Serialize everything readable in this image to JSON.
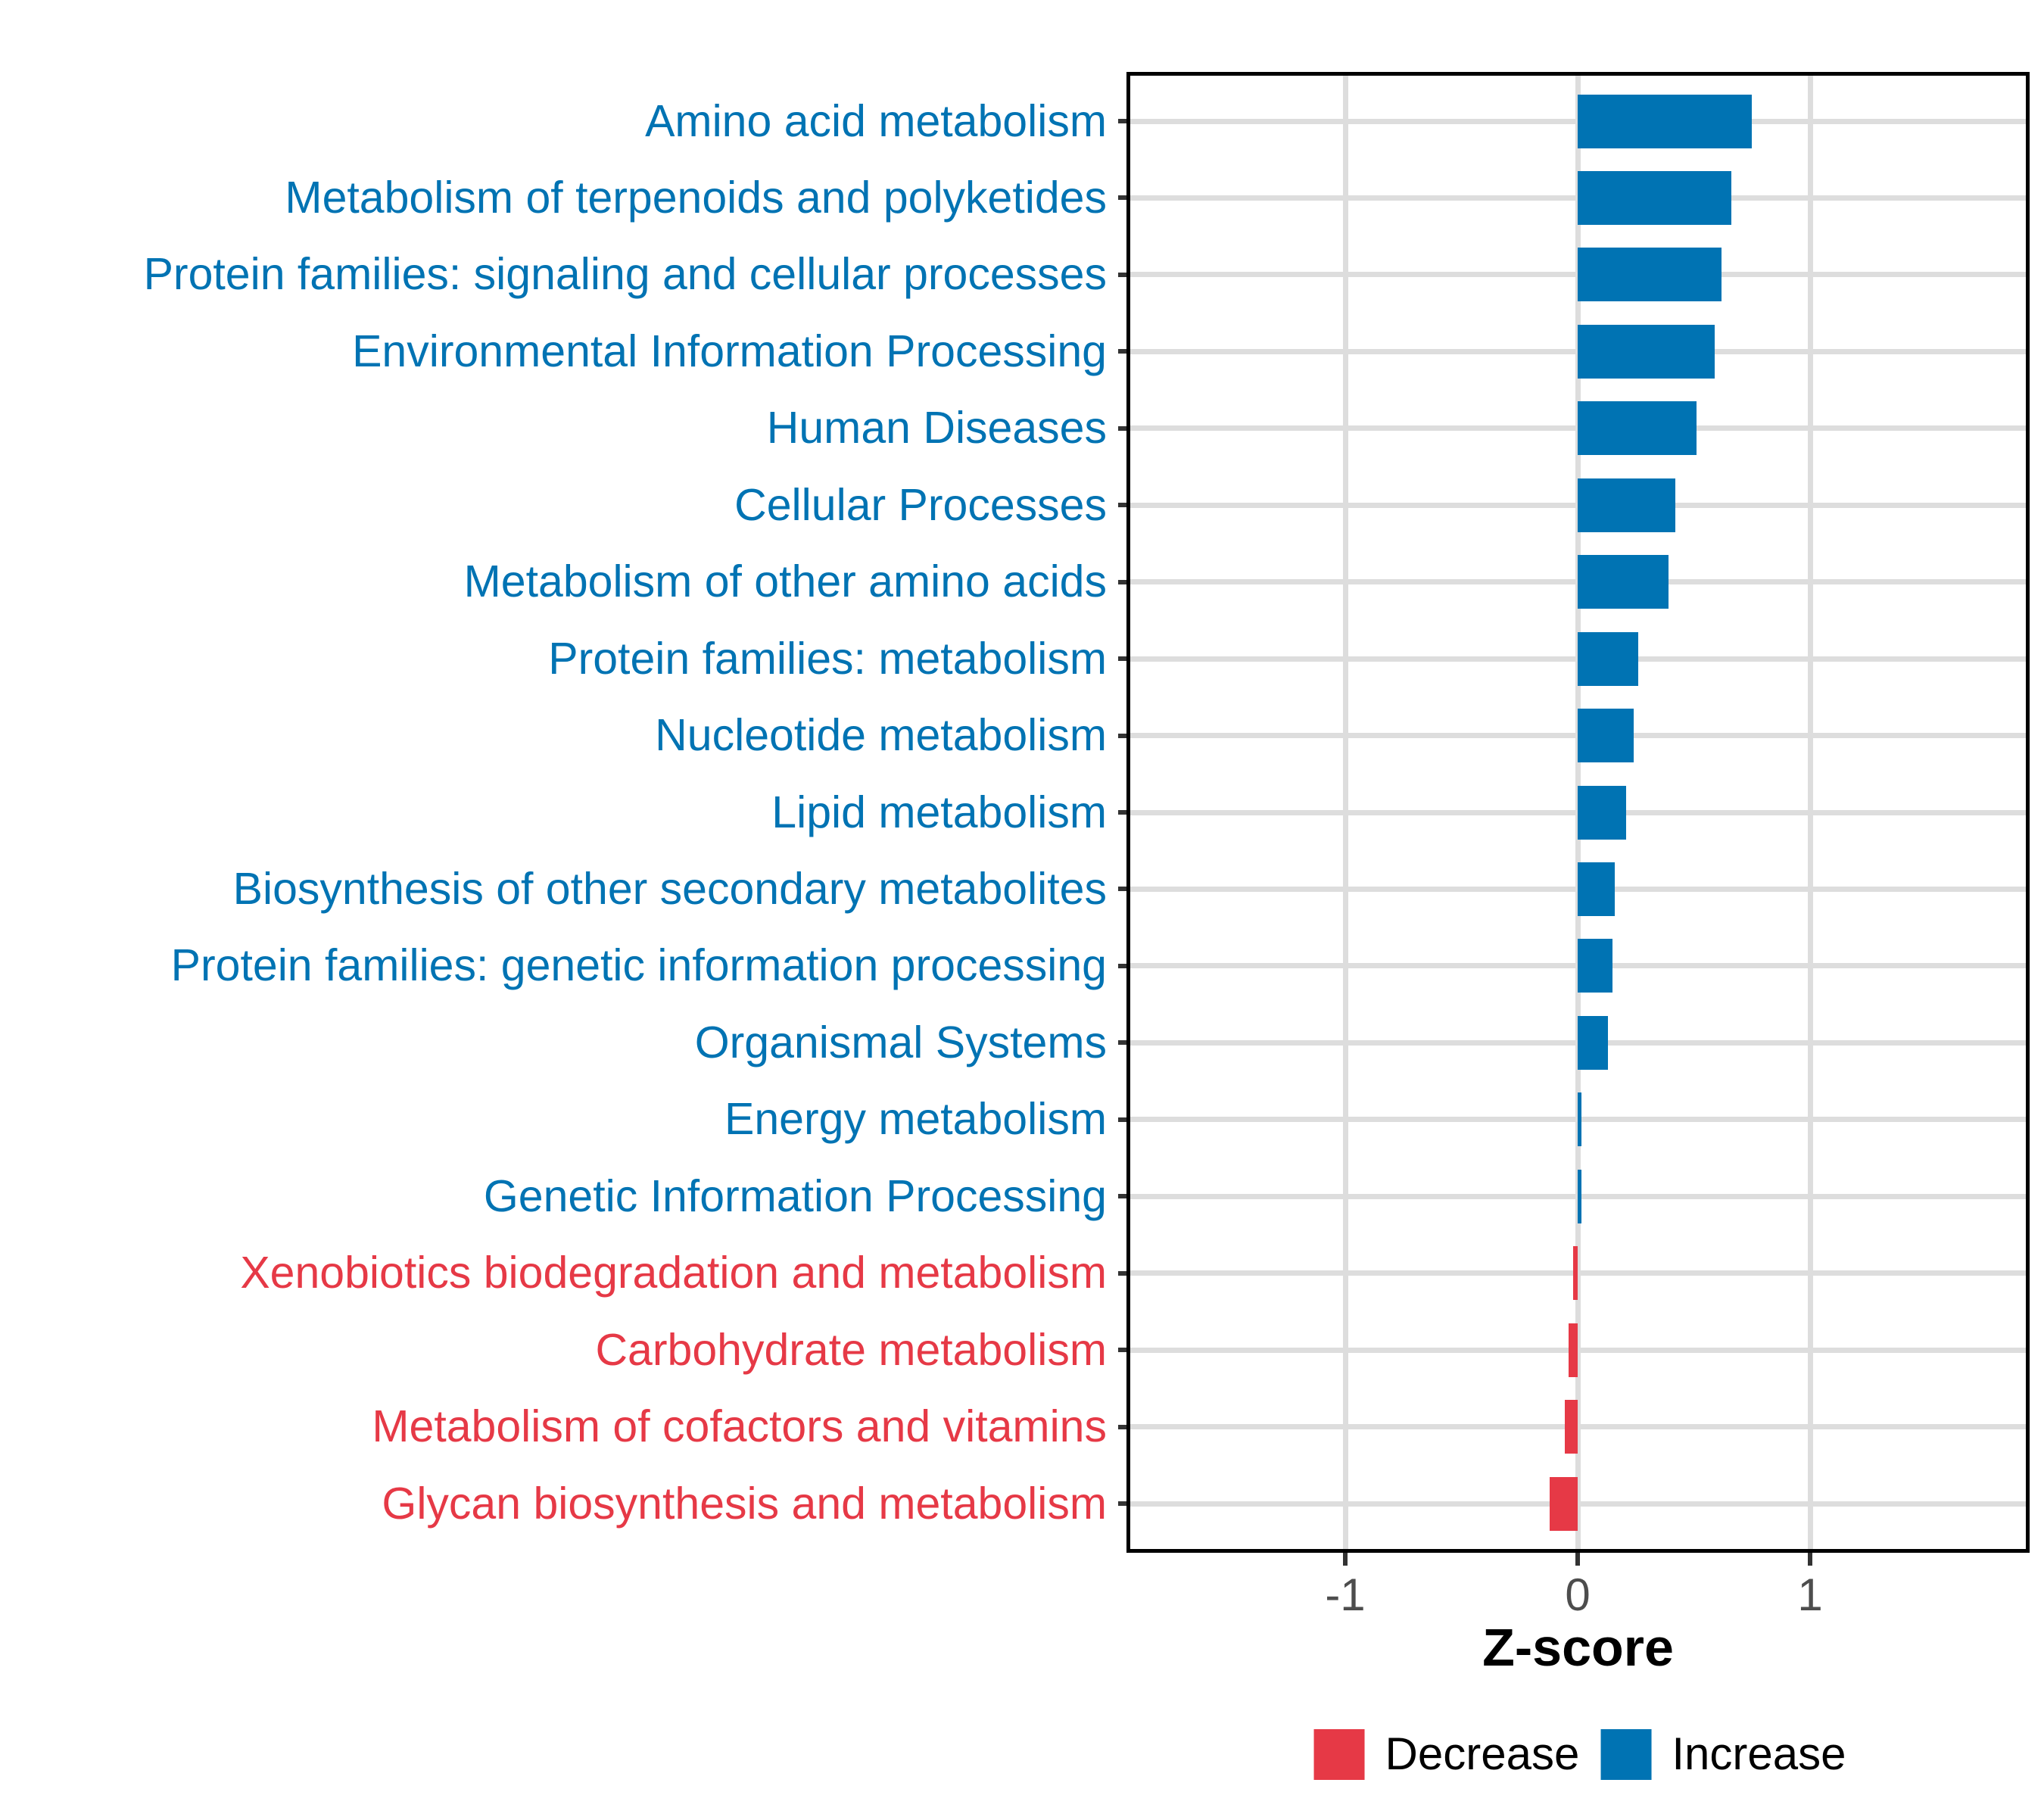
{
  "chart_data": {
    "type": "bar",
    "orientation": "horizontal",
    "title": "",
    "xlabel": "Z-score",
    "ylabel": "",
    "x_ticks": [
      -1,
      0,
      1
    ],
    "xlim": [
      -1.93,
      1.93
    ],
    "grid": "major-only",
    "legend_position": "bottom",
    "categories": [
      "Amino acid metabolism",
      "Metabolism of terpenoids and polyketides",
      "Protein families: signaling and cellular processes",
      "Environmental Information Processing",
      "Human Diseases",
      "Cellular Processes",
      "Metabolism of other amino acids",
      "Protein families: metabolism",
      "Nucleotide metabolism",
      "Lipid metabolism",
      "Biosynthesis of other secondary metabolites",
      "Protein families: genetic information processing",
      "Organismal Systems",
      "Energy metabolism",
      "Genetic Information Processing",
      "Xenobiotics biodegradation and metabolism",
      "Carbohydrate metabolism",
      "Metabolism of cofactors and vitamins",
      "Glycan biosynthesis and metabolism"
    ],
    "values": [
      0.75,
      0.66,
      0.62,
      0.59,
      0.51,
      0.42,
      0.39,
      0.26,
      0.24,
      0.21,
      0.16,
      0.15,
      0.13,
      0.015,
      0.015,
      -0.02,
      -0.04,
      -0.055,
      -0.12
    ],
    "change": [
      "increase",
      "increase",
      "increase",
      "increase",
      "increase",
      "increase",
      "increase",
      "increase",
      "increase",
      "increase",
      "increase",
      "increase",
      "increase",
      "increase",
      "increase",
      "decrease",
      "decrease",
      "decrease",
      "decrease"
    ],
    "colors": {
      "increase": "#0073B3",
      "decrease": "#E63946"
    },
    "legend": [
      {
        "label": "Decrease",
        "color": "#E63946"
      },
      {
        "label": "Increase",
        "color": "#0073B3"
      }
    ]
  }
}
